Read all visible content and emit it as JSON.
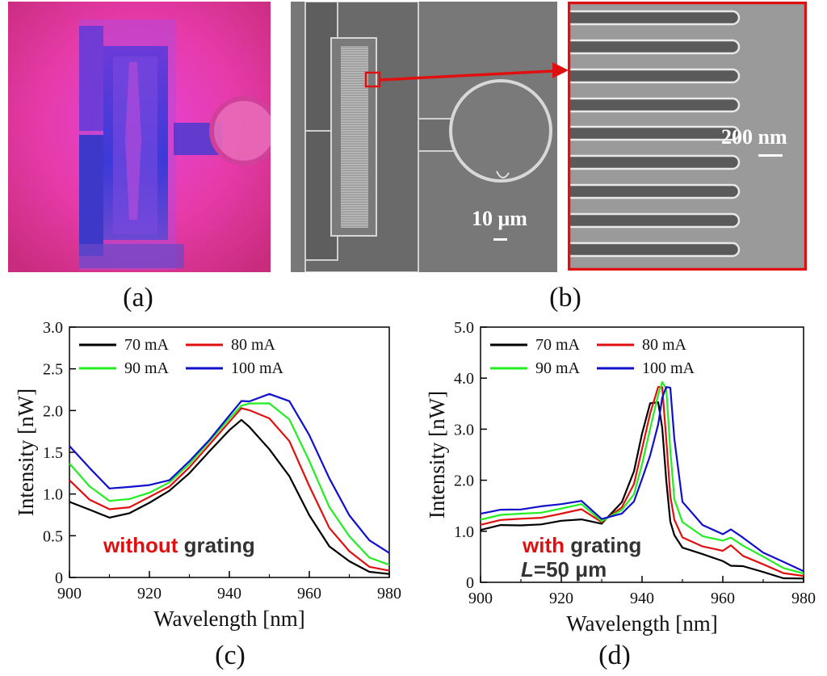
{
  "panels": {
    "a": {
      "label": "(a)"
    },
    "b": {
      "label": "(b)",
      "scale_main": "10 μm",
      "scale_zoom": "200 nm"
    },
    "c": {
      "label": "(c)",
      "annotation_red": "without",
      "annotation_rest": " grating"
    },
    "d": {
      "label": "(d)",
      "annotation_red": "with",
      "annotation_rest": " grating",
      "annotation_line2_italic": "L",
      "annotation_line2_rest": "=50 μm"
    }
  },
  "colors": {
    "70 mA": "#000000",
    "80 mA": "#e01010",
    "90 mA": "#22ee22",
    "100 mA": "#1010cc",
    "highlight": "#e01010",
    "text": "#333333"
  },
  "chart_data": [
    {
      "type": "line",
      "panel": "c",
      "xlabel": "Wavelength [nm]",
      "ylabel": "Intensity [nW]",
      "xlim": [
        900,
        980
      ],
      "ylim": [
        0,
        3.0
      ],
      "xticks": [
        900,
        920,
        940,
        960,
        980
      ],
      "yticks": [
        0,
        0.5,
        1.0,
        1.5,
        2.0,
        2.5,
        3.0
      ],
      "ytick_labels": [
        "0",
        "0.5",
        "1.0",
        "1.5",
        "2.0",
        "2.5",
        "3.0"
      ],
      "legend_position": "top-left",
      "x": [
        900,
        905,
        910,
        915,
        920,
        925,
        930,
        935,
        940,
        943,
        945,
        950,
        955,
        960,
        965,
        970,
        975,
        980
      ],
      "series": [
        {
          "name": "70 mA",
          "values": [
            0.92,
            0.8,
            0.72,
            0.78,
            0.88,
            1.05,
            1.25,
            1.5,
            1.78,
            1.88,
            1.8,
            1.55,
            1.2,
            0.75,
            0.38,
            0.18,
            0.08,
            0.04
          ]
        },
        {
          "name": "80 mA",
          "values": [
            1.18,
            0.92,
            0.82,
            0.85,
            0.95,
            1.1,
            1.32,
            1.58,
            1.88,
            2.02,
            2.0,
            1.92,
            1.62,
            1.1,
            0.6,
            0.3,
            0.14,
            0.08
          ]
        },
        {
          "name": "90 mA",
          "values": [
            1.38,
            1.08,
            0.92,
            0.95,
            1.0,
            1.15,
            1.36,
            1.62,
            1.92,
            2.05,
            2.08,
            2.1,
            1.88,
            1.4,
            0.85,
            0.48,
            0.25,
            0.15
          ]
        },
        {
          "name": "100 mA",
          "values": [
            1.58,
            1.3,
            1.08,
            1.08,
            1.1,
            1.18,
            1.38,
            1.65,
            1.95,
            2.1,
            2.12,
            2.2,
            2.1,
            1.72,
            1.18,
            0.74,
            0.46,
            0.28
          ]
        }
      ]
    },
    {
      "type": "line",
      "panel": "d",
      "xlabel": "Wavelength [nm]",
      "ylabel": "Intensity [nW]",
      "xlim": [
        900,
        980
      ],
      "ylim": [
        0,
        5.0
      ],
      "xticks": [
        900,
        920,
        940,
        960,
        980
      ],
      "yticks": [
        0,
        1.0,
        2.0,
        3.0,
        4.0,
        5.0
      ],
      "ytick_labels": [
        "0",
        "1.0",
        "2.0",
        "3.0",
        "4.0",
        "5.0"
      ],
      "legend_position": "top-left",
      "x": [
        900,
        905,
        910,
        915,
        920,
        925,
        930,
        935,
        938,
        940,
        942,
        944,
        945,
        946,
        947,
        948,
        950,
        955,
        960,
        962,
        965,
        970,
        975,
        980
      ],
      "series": [
        {
          "name": "70 mA",
          "values": [
            1.05,
            1.1,
            1.12,
            1.15,
            1.18,
            1.25,
            1.15,
            1.55,
            2.2,
            2.9,
            3.5,
            3.55,
            3.0,
            2.0,
            1.2,
            0.9,
            0.7,
            0.55,
            0.4,
            0.35,
            0.3,
            0.2,
            0.1,
            0.05
          ]
        },
        {
          "name": "80 mA",
          "values": [
            1.15,
            1.2,
            1.25,
            1.28,
            1.32,
            1.45,
            1.18,
            1.45,
            1.95,
            2.6,
            3.3,
            3.85,
            3.8,
            2.8,
            1.7,
            1.2,
            0.9,
            0.7,
            0.6,
            0.75,
            0.5,
            0.35,
            0.2,
            0.1
          ]
        },
        {
          "name": "90 mA",
          "values": [
            1.25,
            1.3,
            1.35,
            1.38,
            1.42,
            1.55,
            1.2,
            1.4,
            1.75,
            2.3,
            3.0,
            3.7,
            3.9,
            3.8,
            2.6,
            1.6,
            1.2,
            0.9,
            0.8,
            0.9,
            0.7,
            0.5,
            0.3,
            0.15
          ]
        },
        {
          "name": "100 mA",
          "values": [
            1.35,
            1.4,
            1.45,
            1.48,
            1.52,
            1.62,
            1.22,
            1.35,
            1.6,
            2.0,
            2.5,
            3.1,
            3.6,
            3.85,
            3.8,
            2.8,
            1.6,
            1.1,
            0.95,
            1.05,
            0.85,
            0.6,
            0.4,
            0.2
          ]
        }
      ]
    }
  ]
}
